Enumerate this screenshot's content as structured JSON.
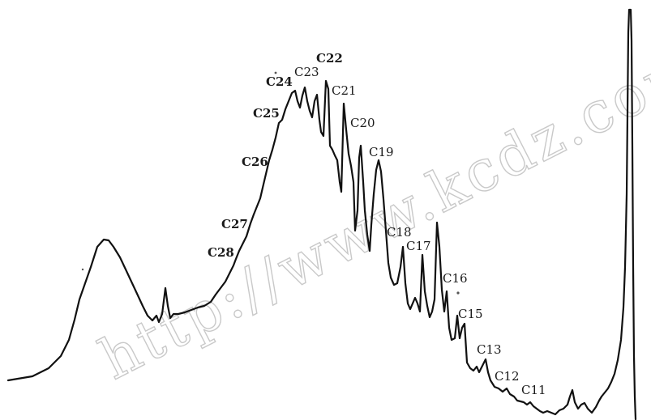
{
  "chart_data": {
    "type": "line",
    "title": "",
    "xlabel": "",
    "ylabel": "",
    "series": [
      {
        "values": [
          2,
          3,
          5,
          15,
          28,
          38,
          45,
          43,
          33,
          25,
          23,
          35,
          25,
          25,
          28,
          32,
          38,
          41,
          45,
          50,
          58,
          65,
          72,
          78,
          84,
          88,
          90,
          88,
          91,
          82,
          87,
          77,
          75,
          68,
          63,
          70,
          58,
          60,
          50,
          46,
          40,
          42,
          36,
          32,
          30,
          29,
          27,
          22,
          24,
          18,
          12,
          8,
          5,
          3,
          1,
          0,
          1,
          3,
          5,
          100,
          0
        ]
      }
    ],
    "peaks": [
      {
        "label": "C28",
        "value": 40
      },
      {
        "label": "C27",
        "value": 50
      },
      {
        "label": "C26",
        "value": 65
      },
      {
        "label": "C25",
        "value": 78
      },
      {
        "label": "C24",
        "value": 86
      },
      {
        "label": "C23",
        "value": 89
      },
      {
        "label": "C22",
        "value": 92
      },
      {
        "label": "C21",
        "value": 83
      },
      {
        "label": "C20",
        "value": 77
      },
      {
        "label": "C19",
        "value": 69
      },
      {
        "label": "C18",
        "value": 45
      },
      {
        "label": "C17",
        "value": 42
      },
      {
        "label": "C16",
        "value": 36
      },
      {
        "label": "C15",
        "value": 25
      },
      {
        "label": "C13",
        "value": 15
      },
      {
        "label": "C12",
        "value": 10
      },
      {
        "label": "C11",
        "value": 7
      }
    ]
  },
  "labels": {
    "c28": "C28",
    "c27": "C27",
    "c26": "C26",
    "c25": "C25",
    "c24": "C24",
    "c23": "C23",
    "c22": "C22",
    "c21": "C21",
    "c20": "C20",
    "c19": "C19",
    "c18": "C18",
    "c17": "C17",
    "c16": "C16",
    "c15": "C15",
    "c13": "C13",
    "c12": "C12",
    "c11": "C11"
  },
  "watermark": "http://www.kcdz.com"
}
